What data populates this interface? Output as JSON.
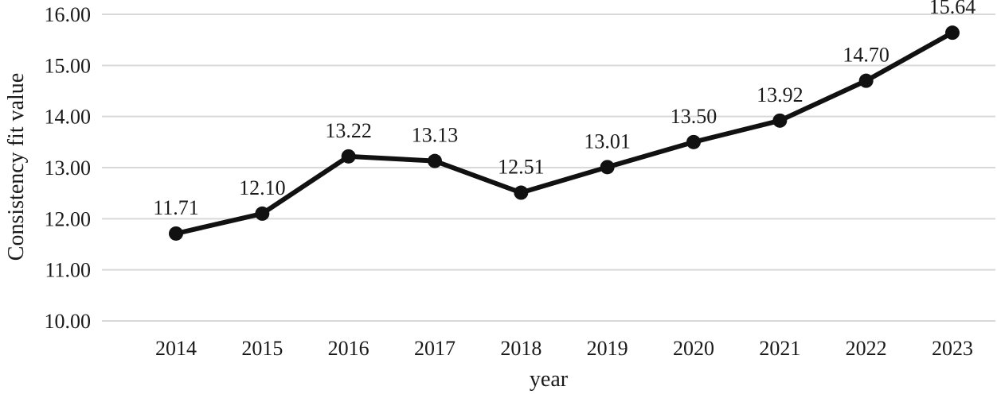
{
  "chart_data": {
    "type": "line",
    "title": "",
    "xlabel": "year",
    "ylabel": "Consistency fit value",
    "categories": [
      "2014",
      "2015",
      "2016",
      "2017",
      "2018",
      "2019",
      "2020",
      "2021",
      "2022",
      "2023"
    ],
    "series": [
      {
        "name": "Consistency fit value",
        "values": [
          11.71,
          12.1,
          13.22,
          13.13,
          12.51,
          13.01,
          13.5,
          13.92,
          14.7,
          15.64
        ],
        "data_labels": [
          "11.71",
          "12.10",
          "13.22",
          "13.13",
          "12.51",
          "13.01",
          "13.50",
          "13.92",
          "14.70",
          "15.64"
        ]
      }
    ],
    "ylim": [
      10,
      16
    ],
    "ytick_step": 1,
    "ytick_labels": [
      "10.00",
      "11.00",
      "12.00",
      "13.00",
      "14.00",
      "15.00",
      "16.00"
    ],
    "grid": "horizontal",
    "legend": "none",
    "colors": {
      "line": "#111111",
      "marker": "#111111",
      "gridline": "#d9d9d9",
      "text": "#1a1a1a"
    }
  }
}
